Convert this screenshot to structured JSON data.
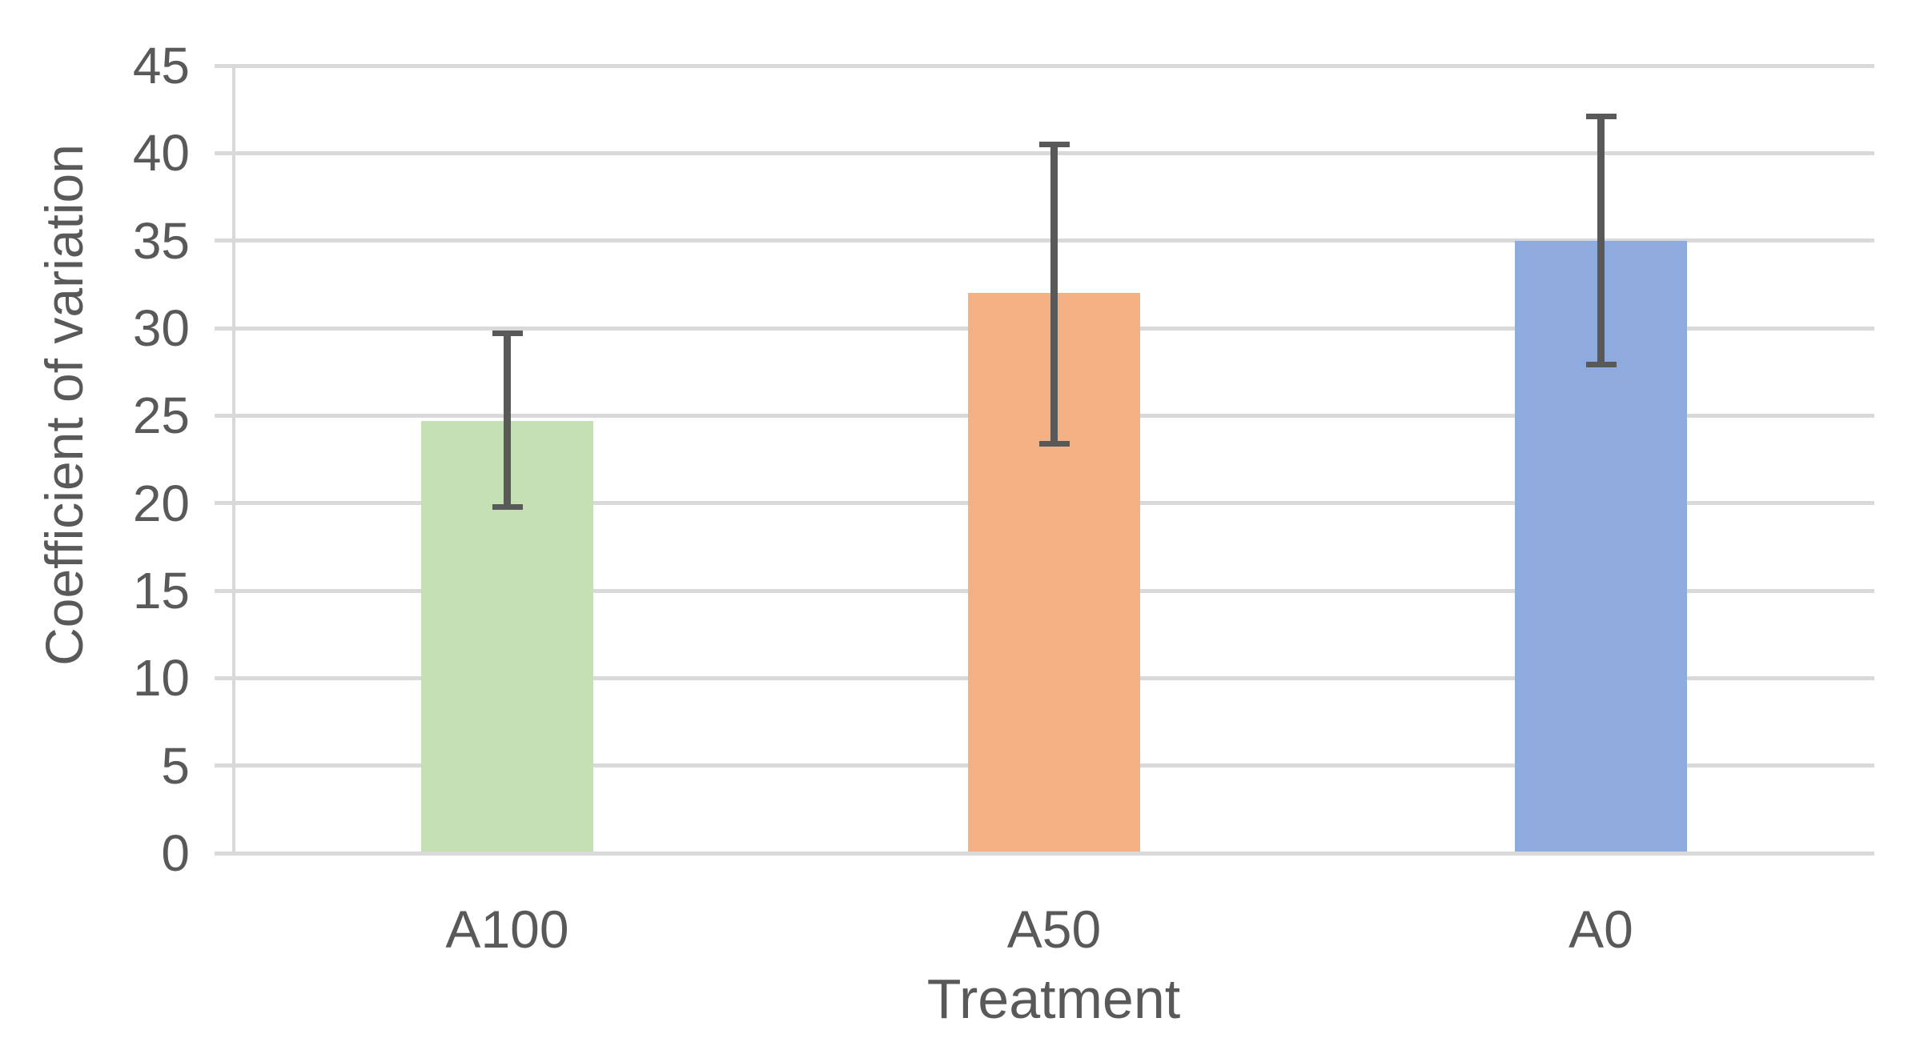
{
  "chart_data": {
    "type": "bar",
    "title": "",
    "xlabel": "Treatment",
    "ylabel": "Coefficient of variation",
    "categories": [
      "A100",
      "A50",
      "A0"
    ],
    "values": [
      24.7,
      32.0,
      35.0
    ],
    "error_bars": {
      "upper": [
        29.7,
        40.5,
        42.1
      ],
      "lower": [
        19.8,
        23.4,
        27.9
      ]
    },
    "bar_colors": [
      "#c5e0b4",
      "#f4b183",
      "#8faadc"
    ],
    "ylim": [
      0,
      45
    ],
    "yticks": [
      0,
      5,
      10,
      15,
      20,
      25,
      30,
      35,
      40,
      45
    ],
    "grid": true,
    "legend": false,
    "colors": {
      "gridline": "#d9d9d9",
      "axis_line": "#d9d9d9",
      "error_bar": "#595959",
      "text": "#595959",
      "background": "#ffffff"
    }
  }
}
